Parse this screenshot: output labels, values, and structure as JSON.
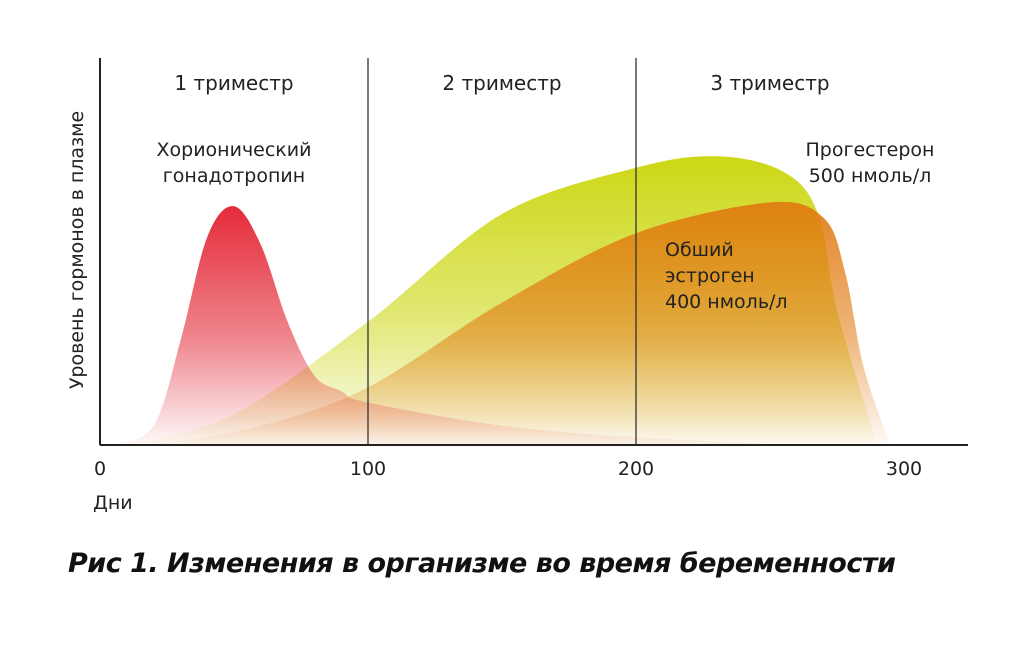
{
  "chart_data": {
    "type": "area",
    "title": "",
    "caption": "Рис 1. Изменения в организме во время беременности",
    "ylabel": "Уровень гормонов в плазме",
    "xlabel": "Дни",
    "xlim": [
      0,
      320
    ],
    "ylim": [
      0,
      1
    ],
    "x_ticks": [
      {
        "value": 0,
        "label": "0"
      },
      {
        "value": 100,
        "label": "100"
      },
      {
        "value": 200,
        "label": "200"
      },
      {
        "value": 300,
        "label": "300"
      }
    ],
    "grid": false,
    "dividers": [
      100,
      200
    ],
    "trimesters": [
      {
        "label": "1 триместр",
        "x": 50
      },
      {
        "label": "2 триместр",
        "x": 150
      },
      {
        "label": "3 триместр",
        "x": 250
      }
    ],
    "series": [
      {
        "name": "Прогестерон 500 нмоль/л",
        "label_lines": [
          "Прогестерон",
          "500 нмоль/л"
        ],
        "color": "#c8d400",
        "x": [
          10,
          50,
          100,
          150,
          200,
          230,
          255,
          268,
          275,
          290
        ],
        "y": [
          0.0,
          0.08,
          0.32,
          0.6,
          0.72,
          0.75,
          0.71,
          0.6,
          0.35,
          0.0
        ]
      },
      {
        "name": "Обший эстроген 400 нмоль/л",
        "label_lines": [
          "Обший",
          "эстроген",
          "400 нмоль/л"
        ],
        "color": "#e07a10",
        "x": [
          20,
          60,
          100,
          150,
          200,
          250,
          270,
          278,
          285,
          295
        ],
        "y": [
          0.0,
          0.05,
          0.15,
          0.37,
          0.55,
          0.63,
          0.59,
          0.45,
          0.2,
          0.0
        ]
      },
      {
        "name": "Хорионический гонадотропин",
        "label_lines": [
          "Хорионический",
          "гонадотропин"
        ],
        "color": "#e2202e",
        "x": [
          5,
          20,
          30,
          40,
          50,
          60,
          70,
          80,
          90,
          100,
          150,
          200,
          260
        ],
        "y": [
          0.0,
          0.05,
          0.27,
          0.54,
          0.62,
          0.52,
          0.32,
          0.18,
          0.14,
          0.11,
          0.05,
          0.02,
          0.0
        ]
      }
    ]
  }
}
